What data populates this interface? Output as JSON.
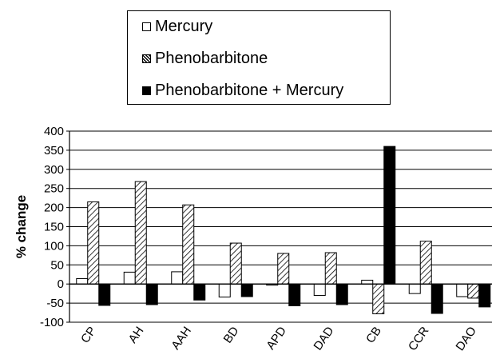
{
  "chart_data": {
    "type": "bar",
    "title": "",
    "xlabel": "",
    "ylabel": "% change",
    "ylim": [
      -100,
      400
    ],
    "yticks": [
      -100,
      -50,
      0,
      50,
      100,
      150,
      200,
      250,
      300,
      350,
      400
    ],
    "ytick_labels": [
      "-100",
      "-50",
      "0",
      "50",
      "100",
      "150",
      "200",
      "250",
      "300",
      "350",
      "400"
    ],
    "categories": [
      "CP",
      "AH",
      "AAH",
      "BD",
      "APD",
      "DAD",
      "CB",
      "CCR",
      "DAO"
    ],
    "grid": true,
    "legend_position": "top",
    "series": [
      {
        "name": "Mercury",
        "fill": "white",
        "values": [
          14,
          31,
          32,
          -34,
          -3,
          -30,
          10,
          -25,
          -33
        ]
      },
      {
        "name": "Phenobarbitone",
        "fill": "hatched",
        "values": [
          215,
          268,
          207,
          107,
          80,
          82,
          -78,
          112,
          -37
        ]
      },
      {
        "name": "Phenobarbitone + Mercury",
        "fill": "black",
        "values": [
          -56,
          -54,
          -42,
          -33,
          -57,
          -54,
          360,
          -77,
          -60
        ]
      }
    ]
  }
}
